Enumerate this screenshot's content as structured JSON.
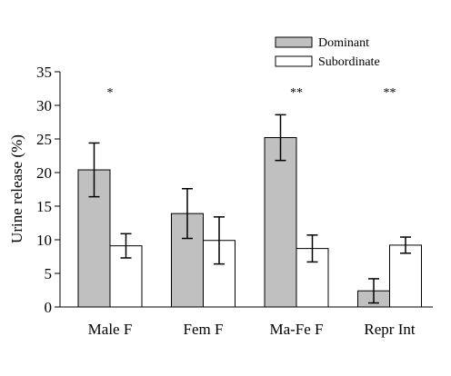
{
  "chart_data": {
    "type": "bar",
    "title": "",
    "xlabel": "",
    "ylabel": "Urine release (%)",
    "ylim": [
      0,
      35
    ],
    "yticks": [
      0,
      5,
      10,
      15,
      20,
      25,
      30,
      35
    ],
    "grid": false,
    "legend_position": "top-right",
    "categories": [
      "Male F",
      "Fem F",
      "Ma-Fe F",
      "Repr Int"
    ],
    "series": [
      {
        "name": "Dominant",
        "color": "#c0c0c0",
        "values": [
          20.4,
          13.9,
          25.2,
          2.4
        ],
        "error": [
          4.0,
          3.7,
          3.4,
          1.8
        ]
      },
      {
        "name": "Subordinate",
        "color": "#ffffff",
        "values": [
          9.1,
          9.9,
          8.7,
          9.2
        ],
        "error": [
          1.8,
          3.5,
          2.0,
          1.2
        ]
      }
    ],
    "annotations": [
      "*",
      "",
      "**",
      "**"
    ]
  }
}
